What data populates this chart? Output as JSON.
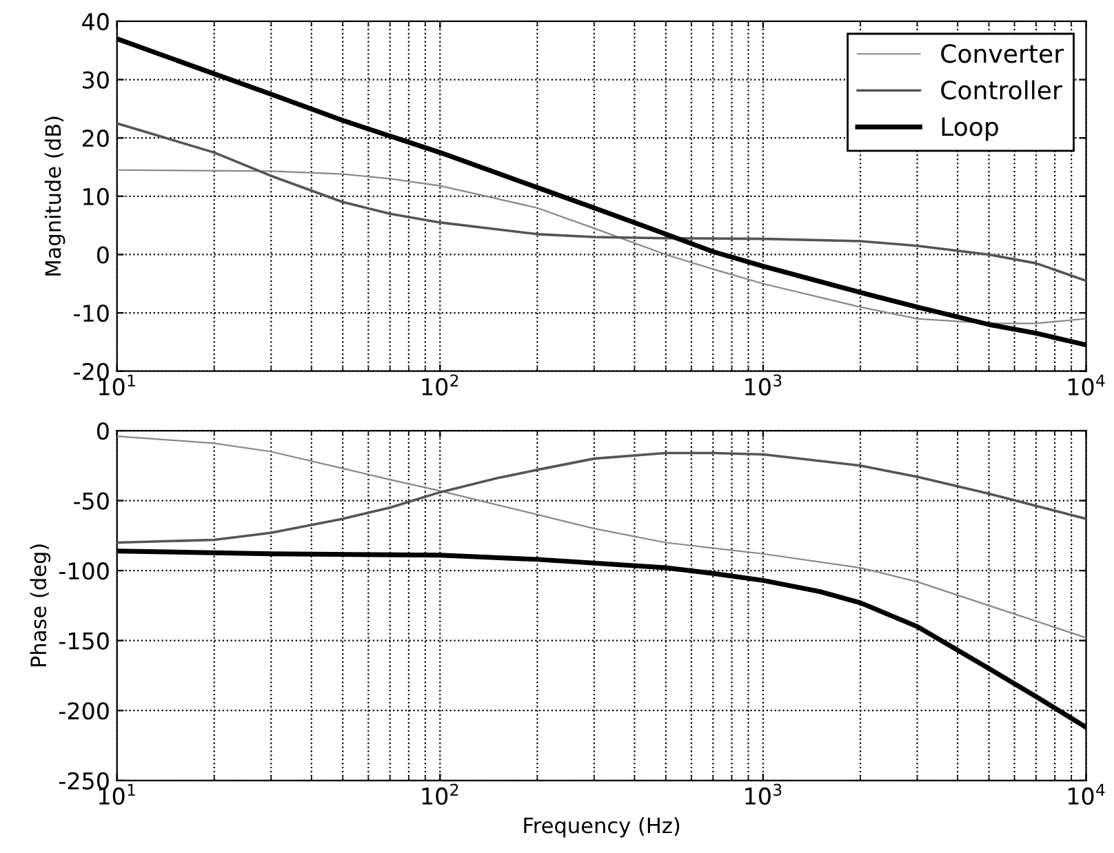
{
  "chart_data": [
    {
      "type": "line",
      "ylabel": "Magnitude (dB)",
      "log": "x",
      "grid": true,
      "legend": "top right",
      "line_style": "solid",
      "marker": "none",
      "xlim": [
        10,
        10000
      ],
      "xticks": [
        {
          "value": 10,
          "label": "10$^{1}$"
        },
        {
          "value": 100,
          "label": "10$^{2}$"
        },
        {
          "value": 1000,
          "label": "10$^{3}$"
        },
        {
          "value": 10000,
          "label": "10$^{4}$"
        }
      ],
      "ylim": [
        -20,
        40
      ],
      "yticks": [
        -20,
        -10,
        0,
        10,
        20,
        30,
        40
      ],
      "series": [
        {
          "name": "Converter",
          "color": "#888888",
          "x": [
            10,
            30,
            50,
            70,
            100,
            200,
            300,
            500,
            700,
            1000,
            2000,
            3000,
            5000,
            7000,
            10000
          ],
          "values": [
            14.5,
            14.3,
            13.8,
            13,
            11.8,
            8,
            4.5,
            0,
            -2.5,
            -5,
            -9,
            -11,
            -11.8,
            -11.8,
            -11
          ]
        },
        {
          "name": "Controller",
          "color": "#555555",
          "x": [
            10,
            20,
            30,
            50,
            70,
            100,
            200,
            300,
            500,
            1000,
            2000,
            3000,
            5000,
            7000,
            10000
          ],
          "values": [
            22.5,
            17.5,
            13.5,
            9,
            7,
            5.5,
            3.5,
            3,
            2.8,
            2.7,
            2.3,
            1.5,
            0,
            -1.5,
            -4.5
          ]
        },
        {
          "name": "Loop",
          "color": "#000000",
          "x": [
            10,
            20,
            30,
            50,
            100,
            200,
            300,
            500,
            700,
            1000,
            2000,
            3000,
            5000,
            7000,
            10000
          ],
          "values": [
            37,
            31,
            27.5,
            23,
            17.5,
            11.5,
            8,
            3.5,
            0.5,
            -2,
            -6.5,
            -9,
            -12,
            -13.5,
            -15.5
          ]
        }
      ]
    },
    {
      "type": "line",
      "xlabel": "Frequency (Hz)",
      "ylabel": "Phase (deg)",
      "log": "x",
      "grid": true,
      "line_style": "solid",
      "marker": "none",
      "xlim": [
        10,
        10000
      ],
      "xticks": [
        {
          "value": 10,
          "label": "10$^{1}$"
        },
        {
          "value": 100,
          "label": "10$^{2}$"
        },
        {
          "value": 1000,
          "label": "10$^{3}$"
        },
        {
          "value": 10000,
          "label": "10$^{4}$"
        }
      ],
      "ylim": [
        -250,
        0
      ],
      "yticks": [
        -250,
        -200,
        -150,
        -100,
        -50,
        0
      ],
      "series": [
        {
          "color": "#888888",
          "x": [
            10,
            20,
            30,
            50,
            70,
            100,
            150,
            200,
            300,
            500,
            1000,
            2000,
            3000,
            5000,
            10000
          ],
          "values": [
            -4,
            -9,
            -15,
            -27,
            -35,
            -43,
            -53,
            -60,
            -70,
            -80,
            -88,
            -98,
            -108,
            -125,
            -148
          ]
        },
        {
          "color": "#555555",
          "x": [
            10,
            20,
            30,
            50,
            70,
            100,
            150,
            200,
            300,
            500,
            700,
            1000,
            2000,
            3000,
            5000,
            10000
          ],
          "values": [
            -80,
            -78,
            -73,
            -63,
            -55,
            -44,
            -34,
            -28,
            -20,
            -16,
            -16,
            -17,
            -25,
            -33,
            -45,
            -63
          ]
        },
        {
          "color": "#000000",
          "x": [
            10,
            30,
            100,
            200,
            500,
            700,
            1000,
            1500,
            2000,
            3000,
            5000,
            7000,
            10000
          ],
          "values": [
            -86,
            -88,
            -89,
            -92,
            -98,
            -102,
            -107,
            -115,
            -123,
            -140,
            -170,
            -190,
            -212
          ]
        }
      ]
    }
  ]
}
